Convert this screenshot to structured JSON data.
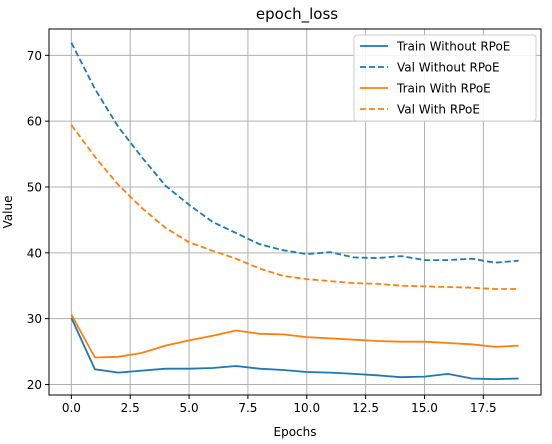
{
  "chart_data": {
    "type": "line",
    "title": "epoch_loss",
    "xlabel": "Epochs",
    "ylabel": "Value",
    "xlim": [
      -0.95,
      19.95
    ],
    "ylim": [
      18.4,
      74.0
    ],
    "grid": true,
    "legend_position": "top-right",
    "x_ticks": [
      0.0,
      2.5,
      5.0,
      7.5,
      10.0,
      12.5,
      15.0,
      17.5
    ],
    "x_tick_labels": [
      "0.0",
      "2.5",
      "5.0",
      "7.5",
      "10.0",
      "12.5",
      "15.0",
      "17.5"
    ],
    "y_ticks": [
      20,
      30,
      40,
      50,
      60,
      70
    ],
    "y_tick_labels": [
      "20",
      "30",
      "40",
      "50",
      "60",
      "70"
    ],
    "x": [
      0,
      1,
      2,
      3,
      4,
      5,
      6,
      7,
      8,
      9,
      10,
      11,
      12,
      13,
      14,
      15,
      16,
      17,
      18,
      19
    ],
    "series": [
      {
        "name": "Train Without RPoE",
        "color": "#1f77b4",
        "style": "solid",
        "values": [
          30.1,
          22.3,
          21.8,
          22.1,
          22.4,
          22.4,
          22.5,
          22.8,
          22.4,
          22.2,
          21.9,
          21.8,
          21.6,
          21.4,
          21.1,
          21.2,
          21.6,
          20.9,
          20.8,
          20.9
        ]
      },
      {
        "name": "Val Without RPoE",
        "color": "#1f77b4",
        "style": "dashed",
        "values": [
          71.9,
          64.9,
          59.1,
          54.5,
          50.2,
          47.3,
          44.7,
          43.0,
          41.3,
          40.4,
          39.8,
          40.1,
          39.3,
          39.2,
          39.5,
          38.9,
          38.9,
          39.1,
          38.5,
          38.8
        ]
      },
      {
        "name": "Train With RPoE",
        "color": "#ff7f0e",
        "style": "solid",
        "values": [
          30.6,
          24.1,
          24.2,
          24.8,
          25.9,
          26.7,
          27.4,
          28.2,
          27.7,
          27.6,
          27.2,
          27.0,
          26.8,
          26.6,
          26.5,
          26.5,
          26.3,
          26.1,
          25.7,
          25.9
        ]
      },
      {
        "name": "Val With RPoE",
        "color": "#ff7f0e",
        "style": "dashed",
        "values": [
          59.4,
          54.6,
          50.3,
          46.8,
          43.8,
          41.6,
          40.3,
          39.1,
          37.6,
          36.5,
          36.0,
          35.7,
          35.4,
          35.3,
          35.0,
          34.9,
          34.8,
          34.7,
          34.5,
          34.5
        ]
      }
    ]
  }
}
